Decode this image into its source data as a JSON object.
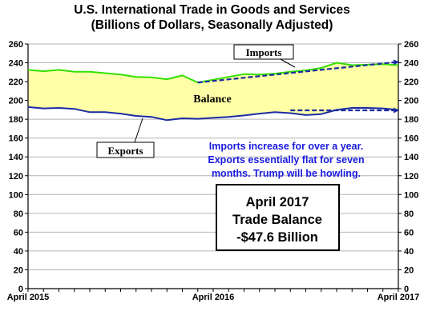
{
  "title_line1": "U.S. International Trade in Goods and Services",
  "title_line2": "(Billions of Dollars, Seasonally Adjusted)",
  "chart_data": {
    "type": "line",
    "x": [
      "2015-04",
      "2015-05",
      "2015-06",
      "2015-07",
      "2015-08",
      "2015-09",
      "2015-10",
      "2015-11",
      "2015-12",
      "2016-01",
      "2016-02",
      "2016-03",
      "2016-04",
      "2016-05",
      "2016-06",
      "2016-07",
      "2016-08",
      "2016-09",
      "2016-10",
      "2016-11",
      "2016-12",
      "2017-01",
      "2017-02",
      "2017-03",
      "2017-04"
    ],
    "x_tick_labels": [
      "April 2015",
      "April 2016",
      "April 2017"
    ],
    "y_ticks": [
      0,
      20,
      40,
      60,
      80,
      100,
      120,
      140,
      160,
      180,
      200,
      220,
      240,
      260
    ],
    "ylim": [
      0,
      260
    ],
    "grid": true,
    "series": [
      {
        "name": "Imports",
        "color": "#33e000",
        "values": [
          232.5,
          231.0,
          232.5,
          230.5,
          230.5,
          229.0,
          227.5,
          225.0,
          224.5,
          222.5,
          226.5,
          219.0,
          222.0,
          225.0,
          228.0,
          227.5,
          228.5,
          230.5,
          232.0,
          234.5,
          240.0,
          237.5,
          238.0,
          238.5,
          237.5
        ]
      },
      {
        "name": "Exports",
        "color": "#1b2ca0",
        "values": [
          193.0,
          191.5,
          192.0,
          191.0,
          187.5,
          187.5,
          186.0,
          183.5,
          182.5,
          179.0,
          181.0,
          180.5,
          181.5,
          182.5,
          184.0,
          186.0,
          187.5,
          186.5,
          184.5,
          185.5,
          190.0,
          192.0,
          192.0,
          191.5,
          189.9
        ]
      }
    ],
    "trendlines": [
      {
        "series": "Imports",
        "from": {
          "x": "2016-03",
          "y": 219.0
        },
        "to": {
          "x": "2017-04",
          "y": 241.0
        },
        "style": "dashed",
        "color": "#1b2ca0"
      },
      {
        "series": "Exports",
        "from": {
          "x": "2016-09",
          "y": 189.5
        },
        "to": {
          "x": "2017-04",
          "y": 189.5
        },
        "style": "dashed",
        "color": "#1b2ca0"
      }
    ],
    "band": {
      "label": "Balance",
      "fill": "#ffffa8"
    },
    "annotations": {
      "imports_label": "Imports",
      "exports_label": "Exports",
      "balance_label": "Balance",
      "note_lines": [
        "Imports increase for over a year.",
        "Exports essentially flat for seven",
        "months. Trump will be howling."
      ],
      "box_lines": [
        "April 2017",
        "Trade Balance",
        "-$47.6 Billion"
      ]
    }
  }
}
